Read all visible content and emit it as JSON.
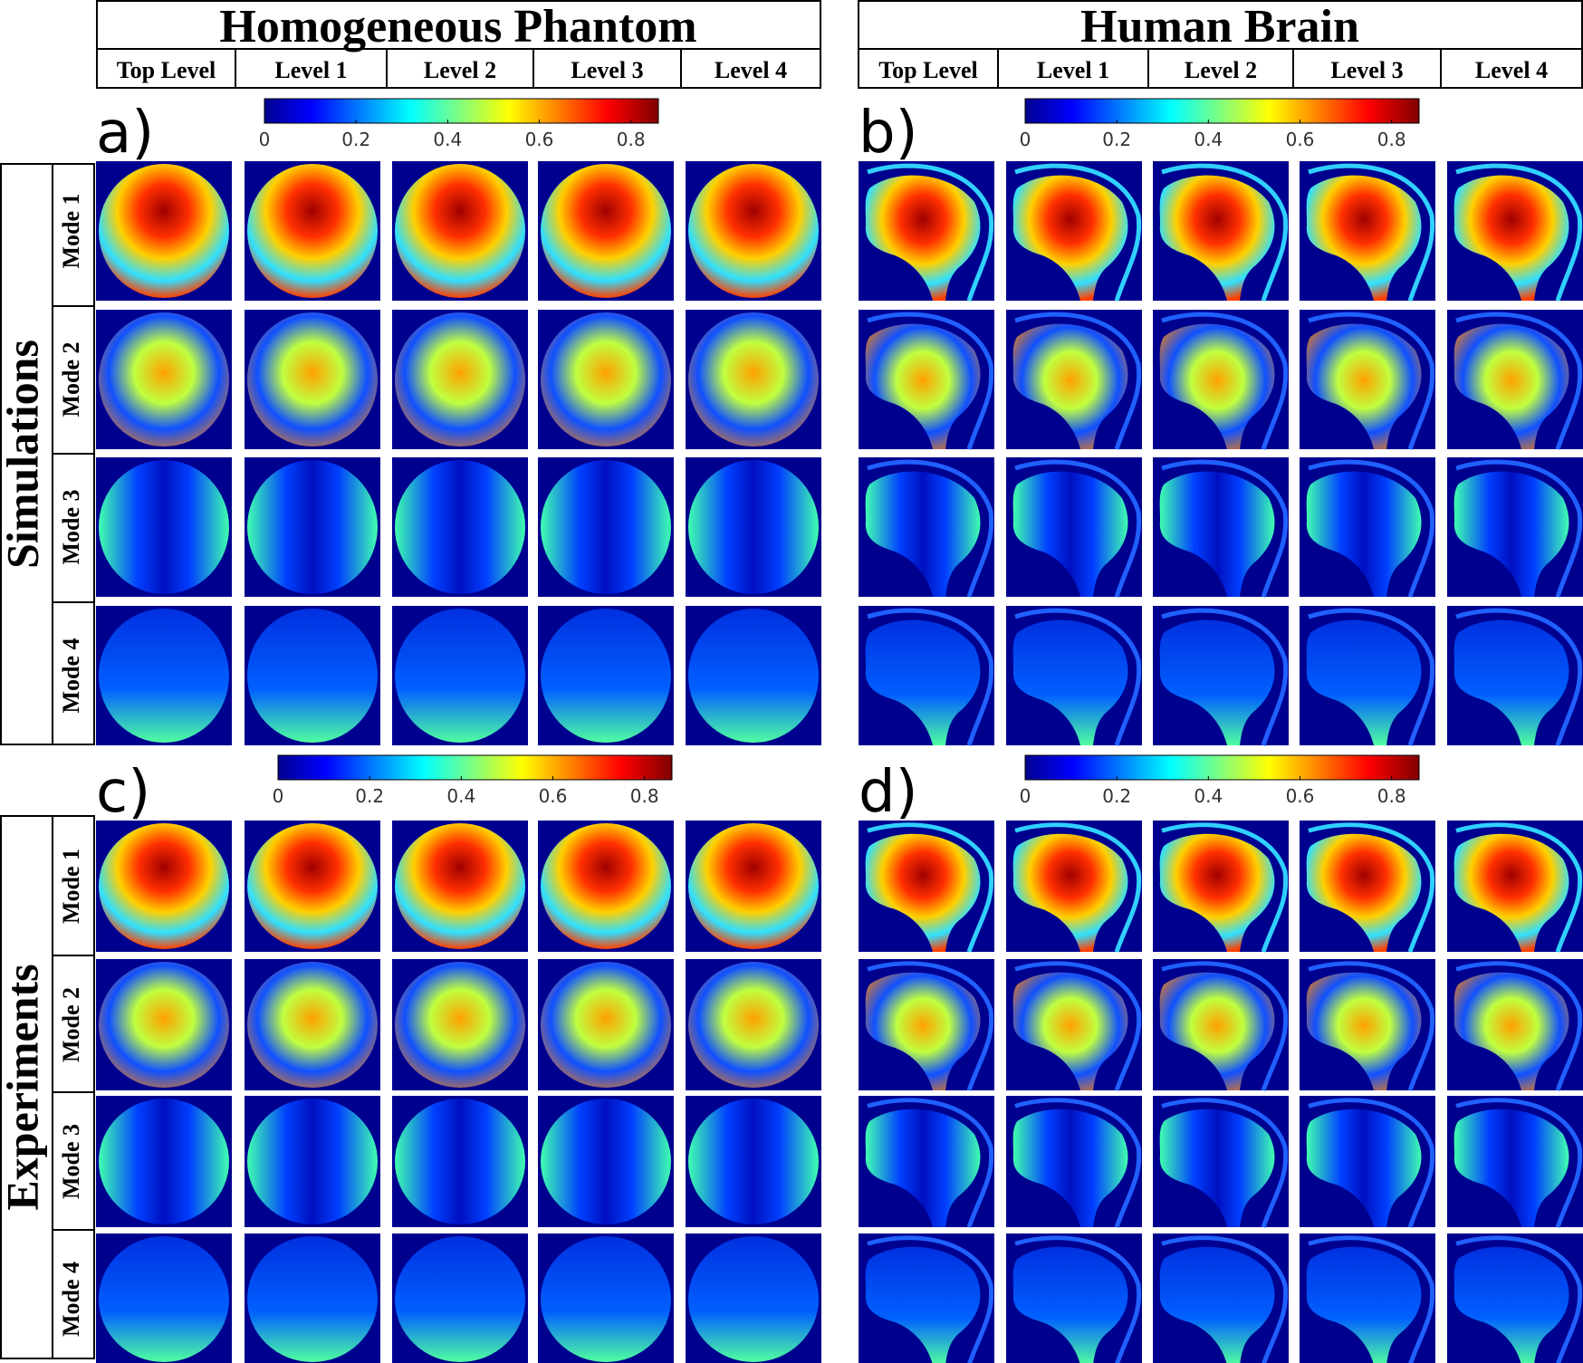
{
  "left_header": {
    "title": "Homogeneous Phantom",
    "levels": [
      "Top Level",
      "Level 1",
      "Level 2",
      "Level 3",
      "Level 4"
    ]
  },
  "right_header": {
    "title": "Human Brain",
    "levels": [
      "Top Level",
      "Level 1",
      "Level 2",
      "Level 3",
      "Level 4"
    ]
  },
  "panels": [
    {
      "label": "a)",
      "colorbar": {
        "lim": [
          0,
          0.86
        ],
        "ticks": [
          0,
          0.2,
          0.4,
          0.6,
          0.8
        ]
      }
    },
    {
      "label": "b)",
      "colorbar": {
        "lim": [
          0,
          0.86
        ],
        "ticks": [
          0,
          0.2,
          0.4,
          0.6,
          0.8
        ]
      }
    },
    {
      "label": "c)",
      "colorbar": {
        "lim": [
          0,
          0.86
        ],
        "ticks": [
          0,
          0.2,
          0.4,
          0.6,
          0.8
        ]
      }
    },
    {
      "label": "d)",
      "colorbar": {
        "lim": [
          0,
          0.86
        ],
        "ticks": [
          0,
          0.2,
          0.4,
          0.6,
          0.8
        ]
      }
    }
  ],
  "sections": [
    {
      "label": "Simulations",
      "modes": [
        "Mode 1",
        "Mode 2",
        "Mode 3",
        "Mode 4"
      ]
    },
    {
      "label": "Experiments",
      "modes": [
        "Mode 1",
        "Mode 2",
        "Mode 3",
        "Mode 4"
      ]
    }
  ]
}
